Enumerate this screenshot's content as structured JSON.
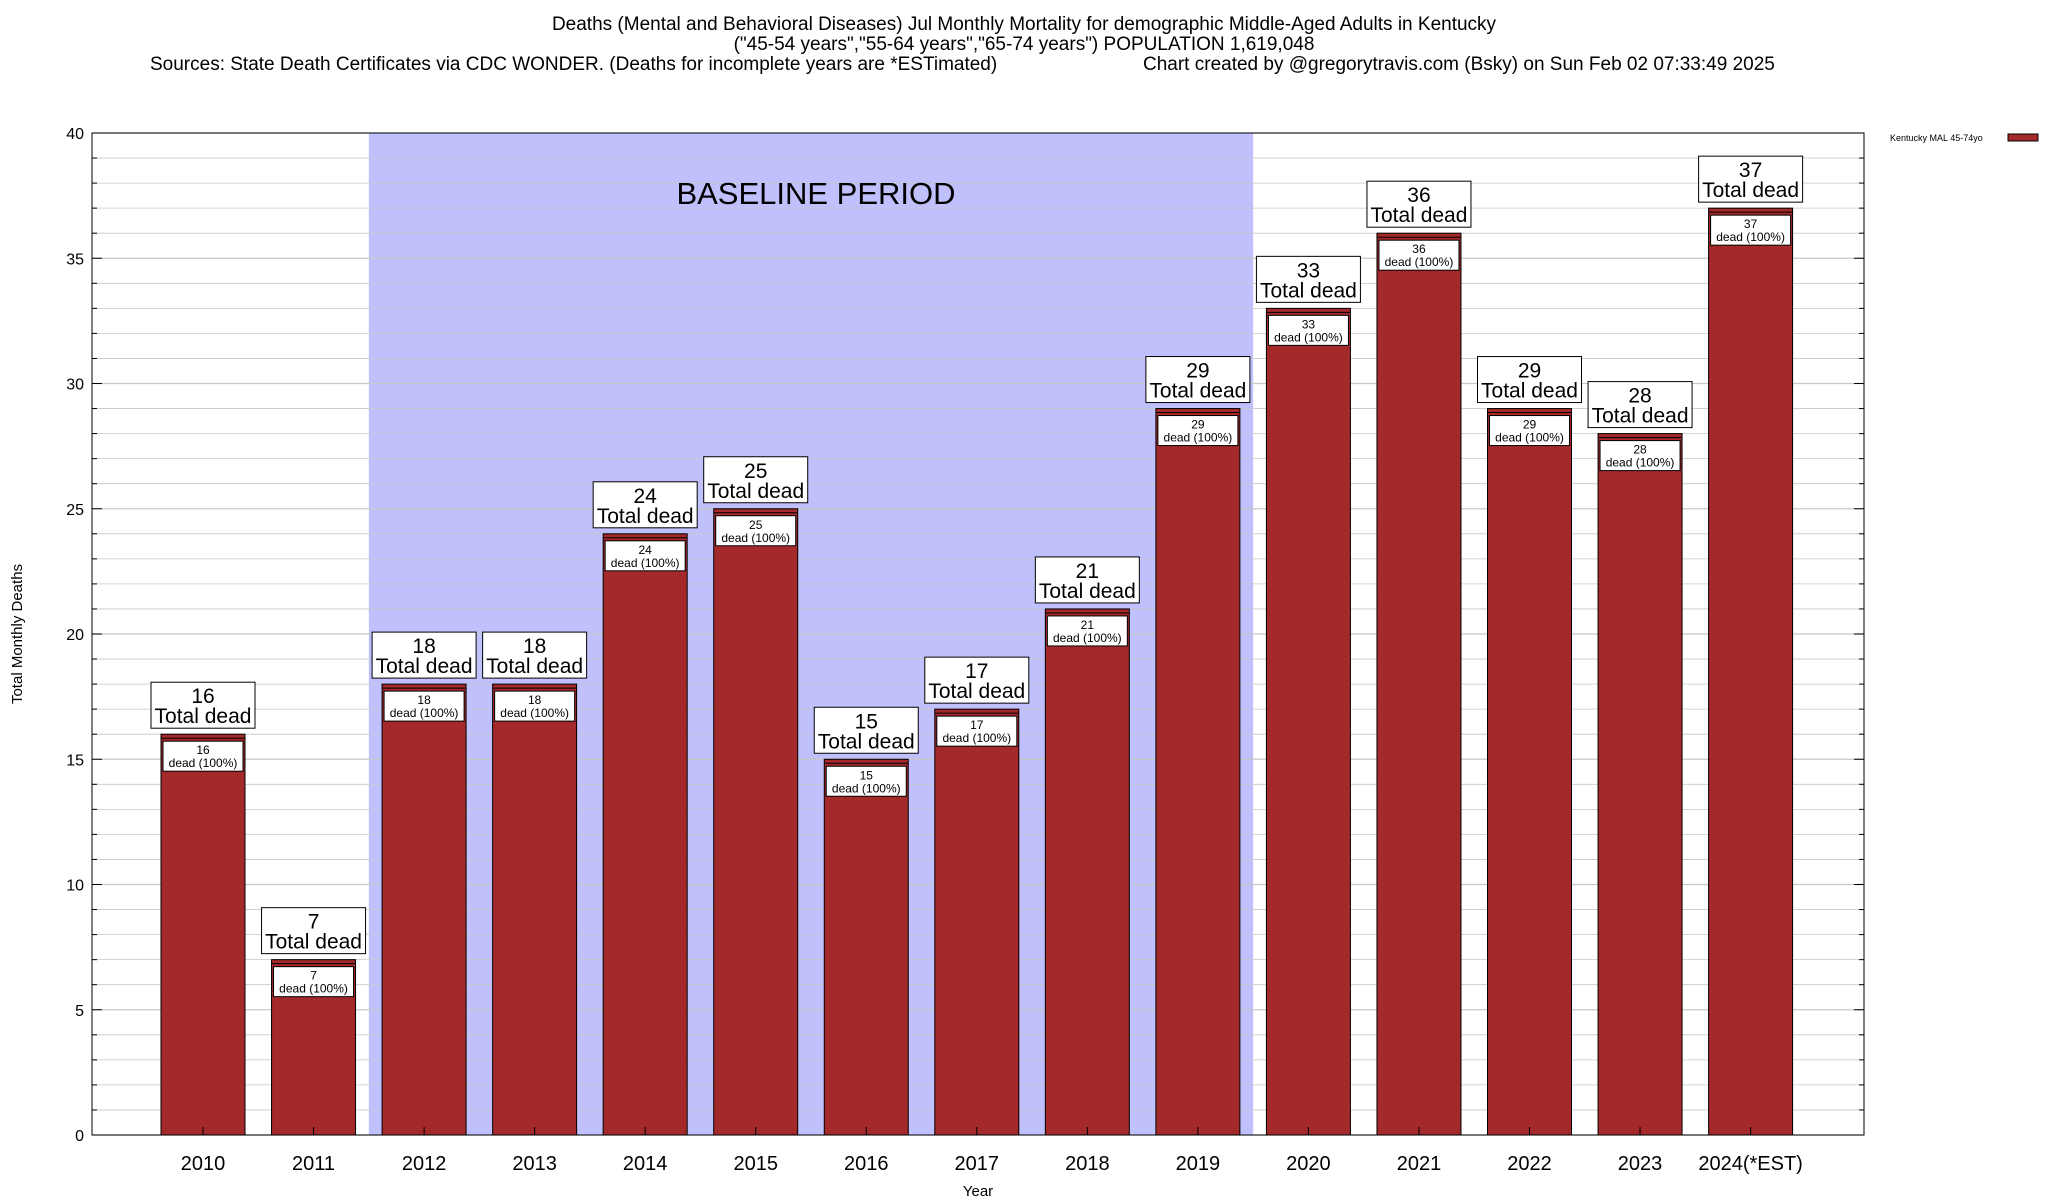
{
  "header": {
    "title_line1": "Deaths (Mental and Behavioral Diseases) Jul Monthly Mortality for demographic Middle-Aged Adults in Kentucky",
    "title_line2": "(\"45-54 years\",\"55-64 years\",\"65-74 years\") POPULATION 1,619,048",
    "sources": "Sources: State Death Certificates via CDC WONDER. (Deaths for incomplete years are *ESTimated)",
    "credit": "Chart created by @gregorytravis.com (Bsky) on Sun Feb 02 07:33:49 2025"
  },
  "colors": {
    "bar": "#a3292b",
    "baseline": "#c0c0fd",
    "grid": "#c8c8c8"
  },
  "chart_data": {
    "type": "bar",
    "title": "Deaths (Mental and Behavioral Diseases) Jul Monthly Mortality for demographic Middle-Aged Adults in Kentucky",
    "xlabel": "Year",
    "ylabel": "Total Monthly Deaths",
    "ylim": [
      0,
      40
    ],
    "yticks": [
      0,
      5,
      10,
      15,
      20,
      25,
      30,
      35,
      40
    ],
    "grid": true,
    "legend": {
      "position": "top-right",
      "label": "Kentucky MAL 45-74yo"
    },
    "categories": [
      "2010",
      "2011",
      "2012",
      "2013",
      "2014",
      "2015",
      "2016",
      "2017",
      "2018",
      "2019",
      "2020",
      "2021",
      "2022",
      "2023",
      "2024(*EST)"
    ],
    "series": [
      {
        "name": "Kentucky MAL 45-74yo",
        "values": [
          16,
          7,
          18,
          18,
          24,
          25,
          15,
          17,
          21,
          29,
          33,
          36,
          29,
          28,
          37
        ]
      }
    ],
    "total_label": "Total dead",
    "inner_label": "dead (100%)",
    "annotation": {
      "text": "BASELINE PERIOD",
      "from": "2012",
      "to": "2019"
    }
  }
}
